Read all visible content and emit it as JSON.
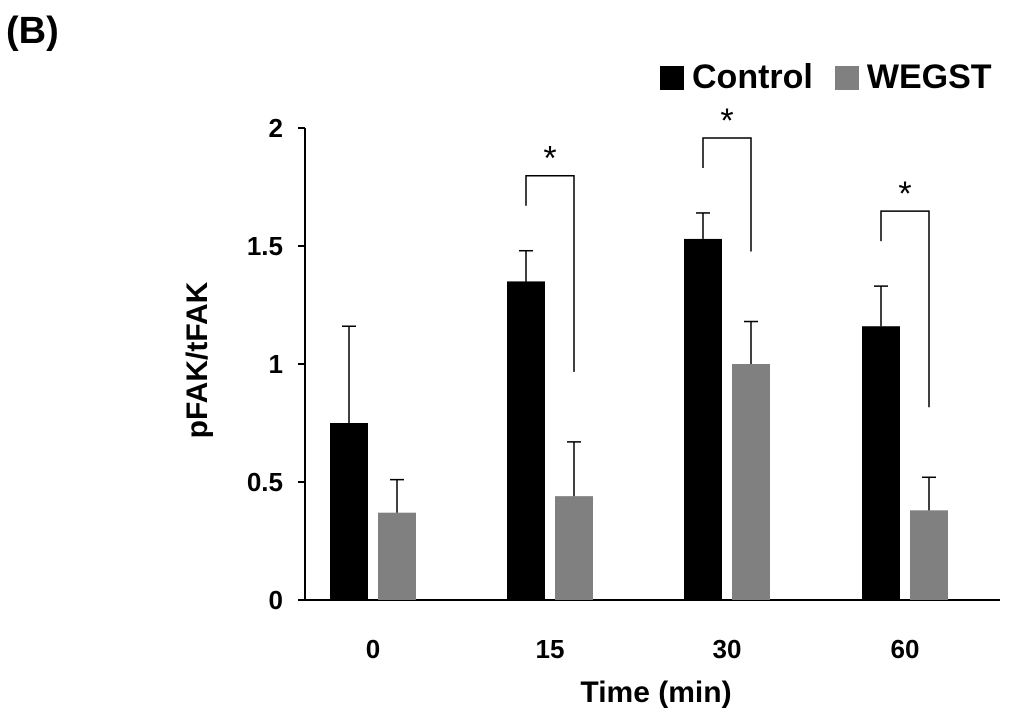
{
  "panel_label": "(B)",
  "colors": {
    "control": "#000000",
    "wegst": "#808080",
    "axis": "#000000"
  },
  "chart_data": {
    "type": "bar",
    "title": "",
    "xlabel": "Time (min)",
    "ylabel": "pFAK/tFAK",
    "ylim": [
      0,
      2
    ],
    "yticks": [
      0,
      0.5,
      1,
      1.5,
      2
    ],
    "ytick_labels": [
      "0",
      "0.5",
      "1",
      "1.5",
      "2"
    ],
    "categories": [
      "0",
      "15",
      "30",
      "60"
    ],
    "series": [
      {
        "name": "Control",
        "values": [
          0.75,
          1.35,
          1.53,
          1.16
        ],
        "errors": [
          0.41,
          0.13,
          0.11,
          0.17
        ]
      },
      {
        "name": "WEGST",
        "values": [
          0.37,
          0.44,
          1.0,
          0.38
        ],
        "errors": [
          0.14,
          0.23,
          0.18,
          0.14
        ]
      }
    ],
    "significance": [
      {
        "category": "15",
        "label": "*"
      },
      {
        "category": "30",
        "label": "*"
      },
      {
        "category": "60",
        "label": "*"
      }
    ],
    "legend": {
      "position": "top-right"
    },
    "grid": false
  }
}
